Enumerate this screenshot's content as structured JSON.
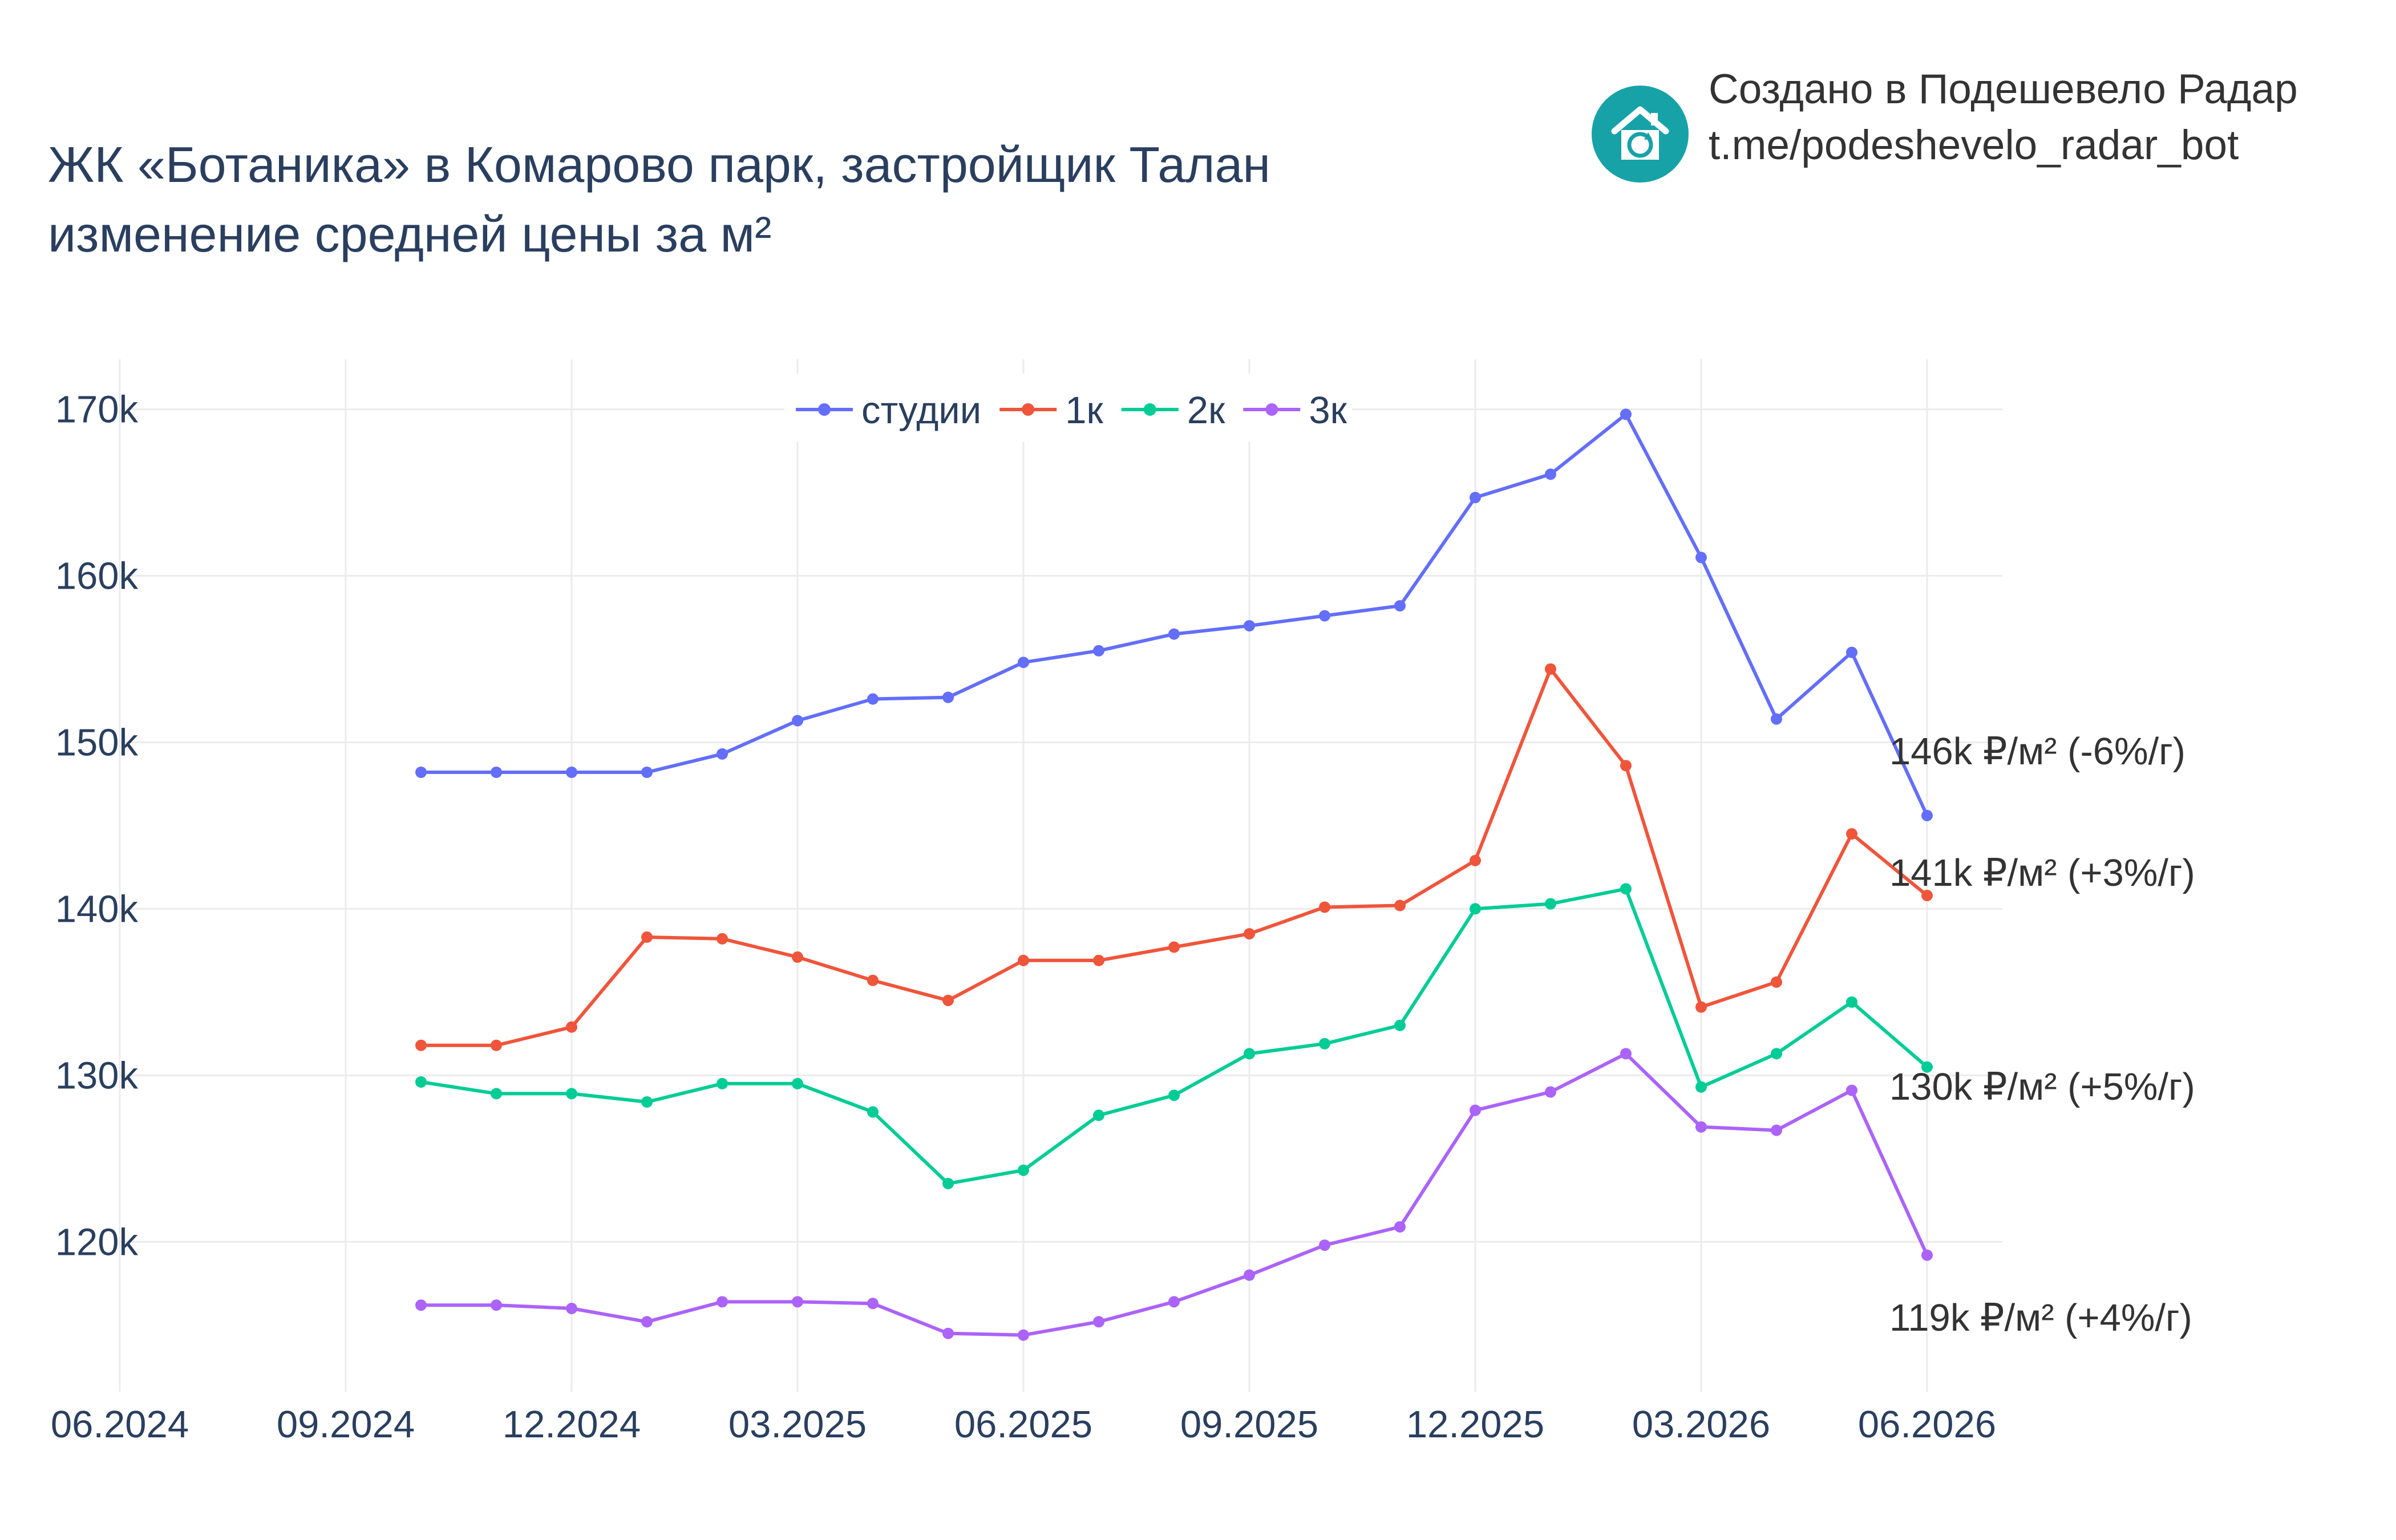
{
  "header": {
    "title_line1": "ЖК «Ботаника» в Комарово парк, застройщик Талан",
    "title_line2": "изменение средней цены за м²"
  },
  "brand": {
    "line1": "Создано в Подешевело Радар",
    "line2": "t.me/podeshevelo_radar_bot",
    "icon": "house-refresh-icon",
    "color": "#17a2a8"
  },
  "chart_data": {
    "type": "line",
    "title": "ЖК «Ботаника» в Комарово парк, застройщик Талан изменение средней цены за м²",
    "xlabel": "",
    "ylabel": "",
    "x": [
      "2024-10",
      "2024-11",
      "2024-12",
      "2025-01",
      "2025-02",
      "2025-03",
      "2025-04",
      "2025-05",
      "2025-06",
      "2025-07",
      "2025-08",
      "2025-09",
      "2025-10",
      "2025-11",
      "2025-12",
      "2026-01",
      "2026-02",
      "2026-03",
      "2026-04",
      "2026-05",
      "2026-06"
    ],
    "xlim": [
      "2024-06",
      "2026-07"
    ],
    "ylim": [
      111000,
      173000
    ],
    "x_ticks": [
      "06.2024",
      "09.2024",
      "12.2024",
      "03.2025",
      "06.2025",
      "09.2025",
      "12.2025",
      "03.2026",
      "06.2026"
    ],
    "y_ticks": [
      120000,
      130000,
      140000,
      150000,
      160000,
      170000
    ],
    "y_tick_labels": [
      "120k",
      "130k",
      "140k",
      "150k",
      "160k",
      "170k"
    ],
    "grid": true,
    "legend": "top-center",
    "series": [
      {
        "name": "студии",
        "color": "#636efa",
        "values": [
          148200,
          148200,
          148200,
          148200,
          149300,
          151300,
          152600,
          152700,
          154800,
          155500,
          156500,
          157000,
          157600,
          158200,
          164700,
          166100,
          169700,
          161100,
          151400,
          155400,
          145600
        ],
        "end_label": "146k ₽/м² (-6%/г)"
      },
      {
        "name": "1к",
        "color": "#ef553b",
        "values": [
          131800,
          131800,
          132900,
          138300,
          138200,
          137100,
          135700,
          134500,
          136900,
          136900,
          137700,
          138500,
          140100,
          140200,
          142900,
          154400,
          148600,
          134100,
          135600,
          144500,
          140800
        ],
        "end_label": "141k ₽/м² (+3%/г)"
      },
      {
        "name": "2к",
        "color": "#00cc96",
        "values": [
          129600,
          128900,
          128900,
          128400,
          129500,
          129500,
          127800,
          123500,
          124300,
          127600,
          128800,
          131300,
          131900,
          133000,
          140000,
          140300,
          141200,
          129300,
          131300,
          134400,
          130500
        ],
        "end_label": "130k ₽/м² (+5%/г)"
      },
      {
        "name": "3к",
        "color": "#ab63fa",
        "values": [
          116200,
          116200,
          116000,
          115200,
          116400,
          116400,
          116300,
          114500,
          114400,
          115200,
          116400,
          118000,
          119800,
          120900,
          127900,
          129000,
          131300,
          126900,
          126700,
          129100,
          119200
        ],
        "end_label": "119k ₽/м² (+4%/г)"
      }
    ]
  }
}
